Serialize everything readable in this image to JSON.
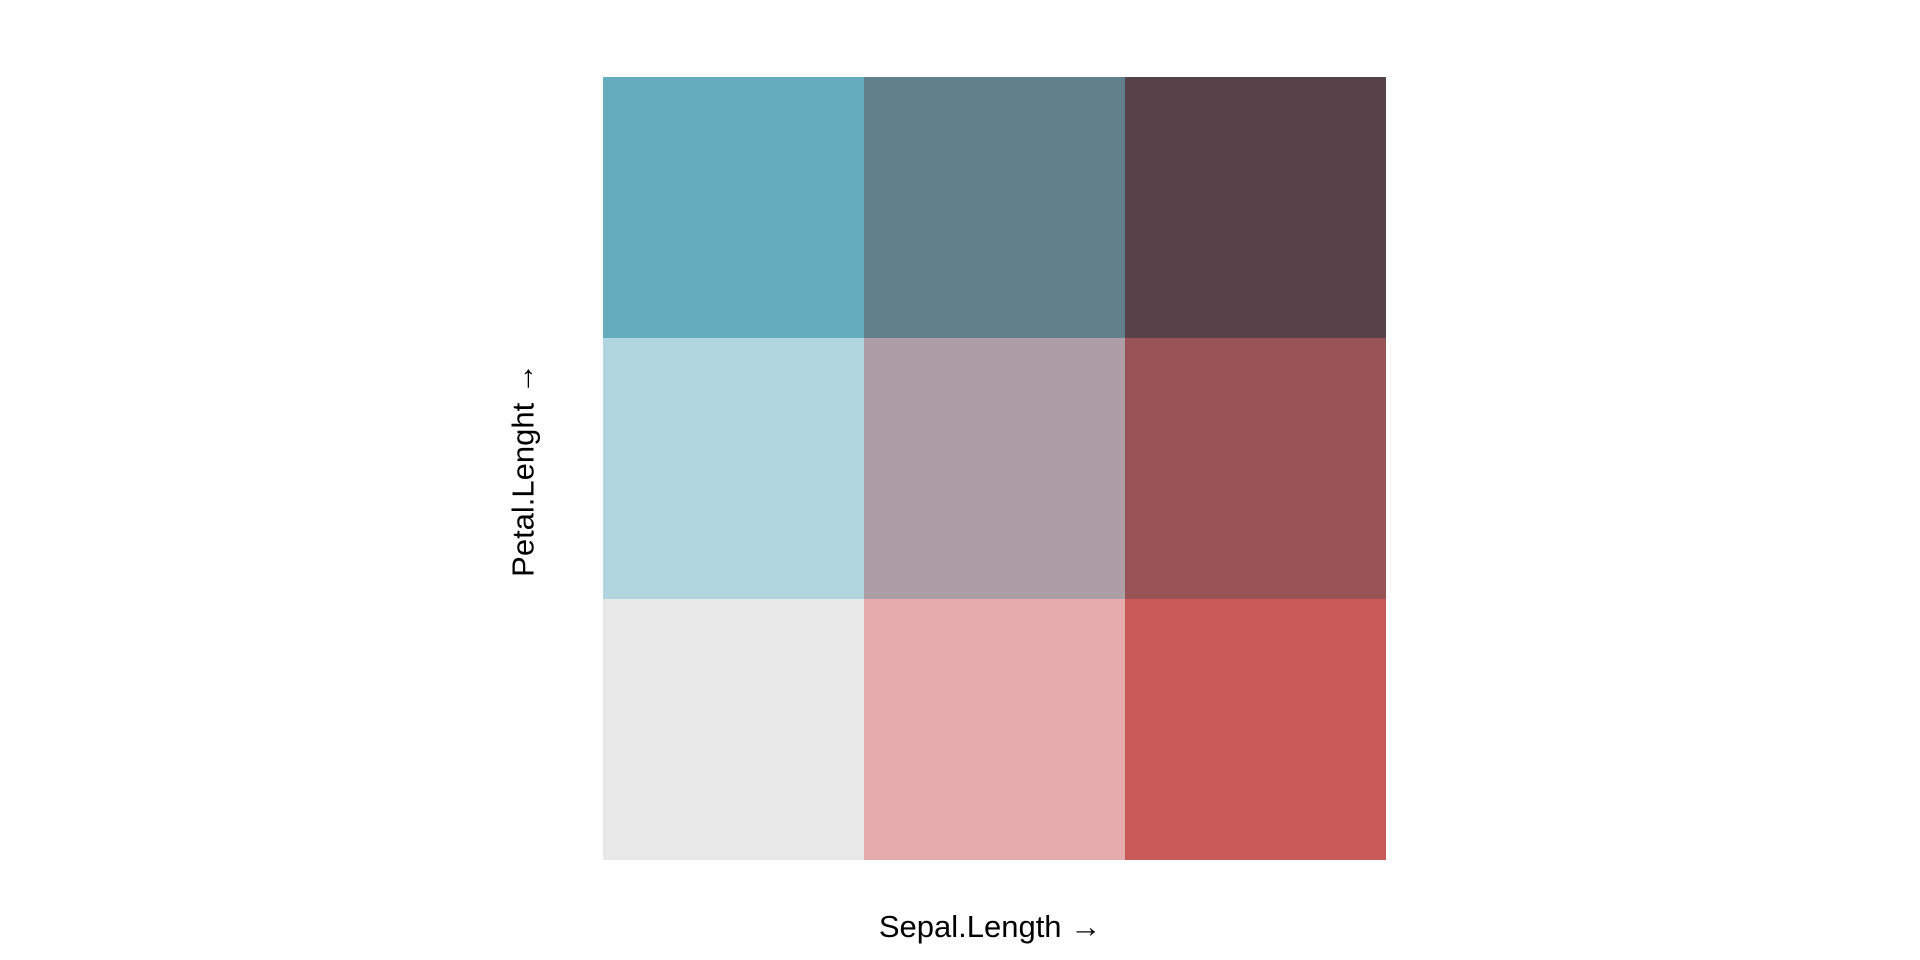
{
  "chart_data": {
    "type": "heatmap",
    "title": "",
    "xlabel": "Sepal.Length →",
    "ylabel": "Petal.Lenght →",
    "rows": 3,
    "cols": 3,
    "cells": [
      [
        {
          "row": 0,
          "col": 0,
          "color": "#64acbe"
        },
        {
          "row": 0,
          "col": 1,
          "color": "#627f8c"
        },
        {
          "row": 0,
          "col": 2,
          "color": "#574249"
        }
      ],
      [
        {
          "row": 1,
          "col": 0,
          "color": "#b0d5df"
        },
        {
          "row": 1,
          "col": 1,
          "color": "#ad9ea5"
        },
        {
          "row": 1,
          "col": 2,
          "color": "#985356"
        }
      ],
      [
        {
          "row": 2,
          "col": 0,
          "color": "#e8e8e8"
        },
        {
          "row": 2,
          "col": 1,
          "color": "#e4acac"
        },
        {
          "row": 2,
          "col": 2,
          "color": "#c85a5a"
        }
      ]
    ]
  }
}
